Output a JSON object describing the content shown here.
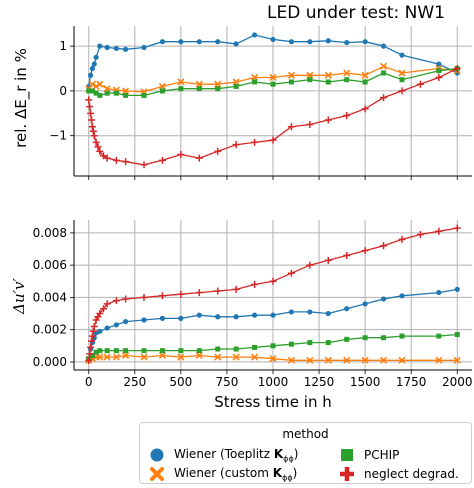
{
  "chart_data": [
    {
      "type": "line",
      "title": "LED under test: NW1",
      "ylabel": "rel. ΔE_r in %",
      "xlabel": "",
      "xlim": [
        -80,
        2080
      ],
      "ylim": [
        -1.9,
        1.45
      ],
      "xticks": [
        0,
        250,
        500,
        750,
        1000,
        1250,
        1500,
        1750,
        2000
      ],
      "yticks": [
        -1,
        0,
        1
      ],
      "ytick_labels": [
        "−1",
        "0",
        "1"
      ],
      "grid": true,
      "series": [
        {
          "name": "Wiener (Toeplitz K_ϕϕ)",
          "color": "#1f77b4",
          "marker": "circle",
          "x": [
            0,
            10,
            20,
            30,
            40,
            60,
            100,
            150,
            200,
            300,
            400,
            500,
            600,
            700,
            800,
            900,
            1000,
            1100,
            1200,
            1300,
            1400,
            1500,
            1600,
            1700,
            1900,
            2000
          ],
          "y": [
            0.1,
            0.35,
            0.5,
            0.6,
            0.75,
            1.0,
            0.97,
            0.95,
            0.93,
            0.97,
            1.1,
            1.1,
            1.1,
            1.1,
            1.05,
            1.25,
            1.15,
            1.1,
            1.1,
            1.12,
            1.08,
            1.1,
            1.0,
            0.8,
            0.6,
            0.4
          ]
        },
        {
          "name": "Wiener (custom K_ϕϕ)",
          "color": "#ff7f0e",
          "marker": "x",
          "x": [
            0,
            20,
            40,
            60,
            100,
            150,
            200,
            300,
            400,
            500,
            600,
            700,
            800,
            900,
            1000,
            1100,
            1200,
            1300,
            1400,
            1500,
            1600,
            1700,
            1900,
            2000
          ],
          "y": [
            0.05,
            0.15,
            0.1,
            0.15,
            0.05,
            0.02,
            0.0,
            -0.02,
            0.1,
            0.2,
            0.15,
            0.15,
            0.2,
            0.3,
            0.3,
            0.35,
            0.35,
            0.35,
            0.4,
            0.35,
            0.55,
            0.4,
            0.5,
            0.45
          ]
        },
        {
          "name": "PCHIP",
          "color": "#2ca02c",
          "marker": "square",
          "x": [
            0,
            20,
            40,
            60,
            100,
            150,
            200,
            300,
            400,
            500,
            600,
            700,
            800,
            900,
            1000,
            1100,
            1200,
            1300,
            1400,
            1500,
            1600,
            1700,
            1900,
            2000
          ],
          "y": [
            0.0,
            0.0,
            -0.05,
            -0.1,
            -0.05,
            -0.05,
            -0.1,
            -0.1,
            0.0,
            0.05,
            0.05,
            0.05,
            0.1,
            0.2,
            0.15,
            0.2,
            0.25,
            0.2,
            0.25,
            0.2,
            0.4,
            0.25,
            0.45,
            0.5
          ]
        },
        {
          "name": "neglect degrad.",
          "color": "#d62728",
          "marker": "plus",
          "x": [
            0,
            5,
            10,
            15,
            20,
            25,
            30,
            40,
            50,
            60,
            80,
            100,
            150,
            200,
            300,
            400,
            500,
            600,
            700,
            800,
            900,
            1000,
            1100,
            1200,
            1300,
            1400,
            1500,
            1600,
            1700,
            1800,
            1900,
            2000
          ],
          "y": [
            -0.2,
            -0.35,
            -0.5,
            -0.65,
            -0.8,
            -0.9,
            -1.0,
            -1.15,
            -1.25,
            -1.35,
            -1.45,
            -1.5,
            -1.55,
            -1.58,
            -1.65,
            -1.55,
            -1.42,
            -1.5,
            -1.35,
            -1.2,
            -1.15,
            -1.1,
            -0.8,
            -0.75,
            -0.65,
            -0.55,
            -0.4,
            -0.15,
            0.0,
            0.15,
            0.3,
            0.5
          ]
        }
      ]
    },
    {
      "type": "line",
      "title": "",
      "ylabel": "Δu′v′",
      "xlabel": "Stress time in h",
      "xlim": [
        -80,
        2080
      ],
      "ylim": [
        -0.0005,
        0.0088
      ],
      "xticks": [
        0,
        250,
        500,
        750,
        1000,
        1250,
        1500,
        1750,
        2000
      ],
      "xtick_labels": [
        "0",
        "250",
        "500",
        "750",
        "1000",
        "1250",
        "1500",
        "1750",
        "2000"
      ],
      "yticks": [
        0.0,
        0.002,
        0.004,
        0.006,
        0.008
      ],
      "ytick_labels": [
        "0.000",
        "0.002",
        "0.004",
        "0.006",
        "0.008"
      ],
      "grid": true,
      "series": [
        {
          "name": "Wiener (Toeplitz K_ϕϕ)",
          "color": "#1f77b4",
          "marker": "circle",
          "x": [
            0,
            10,
            20,
            30,
            40,
            60,
            100,
            150,
            200,
            300,
            400,
            500,
            600,
            700,
            800,
            900,
            1000,
            1100,
            1200,
            1300,
            1400,
            1500,
            1600,
            1700,
            1900,
            2000
          ],
          "y": [
            0.0001,
            0.0008,
            0.0012,
            0.0015,
            0.0018,
            0.0019,
            0.0021,
            0.0023,
            0.0025,
            0.0026,
            0.0027,
            0.0027,
            0.0029,
            0.0028,
            0.0028,
            0.0029,
            0.0029,
            0.0031,
            0.0031,
            0.003,
            0.0033,
            0.0036,
            0.0039,
            0.0041,
            0.0043,
            0.0045
          ]
        },
        {
          "name": "Wiener (custom K_ϕϕ)",
          "color": "#ff7f0e",
          "marker": "x",
          "x": [
            0,
            20,
            40,
            60,
            100,
            150,
            200,
            300,
            400,
            500,
            600,
            700,
            800,
            900,
            1000,
            1100,
            1200,
            1300,
            1400,
            1500,
            1600,
            1700,
            1900,
            2000
          ],
          "y": [
            0.0001,
            0.0002,
            0.0003,
            0.0003,
            0.0003,
            0.0003,
            0.0004,
            0.0003,
            0.0004,
            0.0003,
            0.0004,
            0.0003,
            0.0003,
            0.0003,
            0.0002,
            0.0001,
            0.0001,
            0.0001,
            0.0001,
            0.0001,
            0.0001,
            0.0001,
            0.0001,
            0.0001
          ]
        },
        {
          "name": "PCHIP",
          "color": "#2ca02c",
          "marker": "square",
          "x": [
            0,
            20,
            40,
            60,
            100,
            150,
            200,
            300,
            400,
            500,
            600,
            700,
            800,
            900,
            1000,
            1100,
            1200,
            1300,
            1400,
            1500,
            1600,
            1700,
            1900,
            2000
          ],
          "y": [
            0.0002,
            0.0004,
            0.0006,
            0.0007,
            0.0007,
            0.0007,
            0.0007,
            0.0007,
            0.0007,
            0.0007,
            0.0007,
            0.0008,
            0.0008,
            0.0009,
            0.001,
            0.0011,
            0.0012,
            0.0012,
            0.0014,
            0.0015,
            0.0015,
            0.0016,
            0.0016,
            0.0017
          ]
        },
        {
          "name": "neglect degrad.",
          "color": "#d62728",
          "marker": "plus",
          "x": [
            0,
            5,
            10,
            15,
            20,
            25,
            30,
            40,
            50,
            60,
            80,
            100,
            150,
            200,
            300,
            400,
            500,
            600,
            700,
            800,
            900,
            1000,
            1100,
            1200,
            1300,
            1400,
            1500,
            1600,
            1700,
            1800,
            1900,
            2000
          ],
          "y": [
            0.0001,
            0.0005,
            0.0009,
            0.0013,
            0.0016,
            0.0019,
            0.0022,
            0.0026,
            0.0028,
            0.003,
            0.0033,
            0.0036,
            0.0038,
            0.0039,
            0.004,
            0.0041,
            0.0042,
            0.0043,
            0.0044,
            0.0045,
            0.0048,
            0.005,
            0.0055,
            0.006,
            0.0063,
            0.0066,
            0.0069,
            0.0072,
            0.0076,
            0.0079,
            0.0081,
            0.0083
          ]
        }
      ]
    }
  ],
  "legend": {
    "title": "method",
    "placement": "bottom-right",
    "items": [
      {
        "label_pre": "Wiener (Toeplitz ",
        "label_bold": "K",
        "label_sub": "ϕϕ",
        "label_post": ")",
        "color": "#1f77b4",
        "marker": "circle"
      },
      {
        "label_pre": "Wiener (custom ",
        "label_bold": "K",
        "label_sub": "ϕϕ",
        "label_post": ")",
        "color": "#ff7f0e",
        "marker": "x"
      },
      {
        "label_pre": "PCHIP",
        "label_bold": "",
        "label_sub": "",
        "label_post": "",
        "color": "#2ca02c",
        "marker": "square"
      },
      {
        "label_pre": "neglect degrad.",
        "label_bold": "",
        "label_sub": "",
        "label_post": "",
        "color": "#d62728",
        "marker": "plus"
      }
    ]
  }
}
